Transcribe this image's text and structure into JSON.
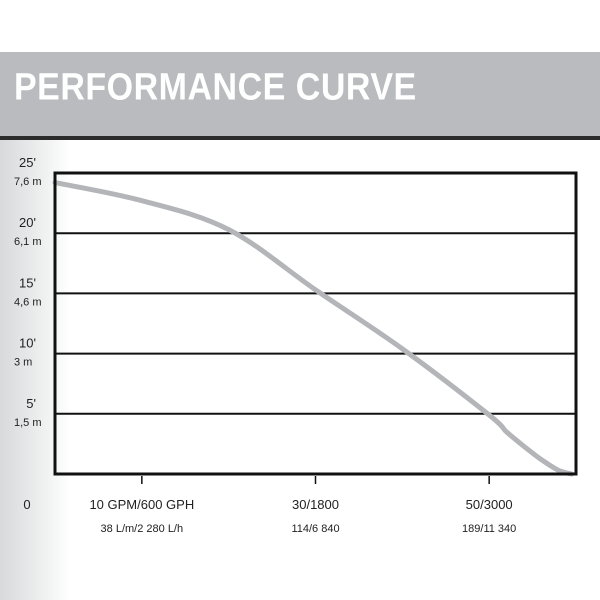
{
  "header": {
    "title": "PERFORMANCE CURVE"
  },
  "chart_data": {
    "type": "line",
    "title": "PERFORMANCE CURVE",
    "xlabel": "",
    "ylabel": "",
    "x_unit_max": 60,
    "xlim": [
      0,
      60
    ],
    "ylim": [
      0,
      25
    ],
    "grid": true,
    "y_ticks": [
      {
        "value": 5,
        "ft": "5'",
        "m": "1,5 m"
      },
      {
        "value": 10,
        "ft": "10'",
        "m": "3 m"
      },
      {
        "value": 15,
        "ft": "15'",
        "m": "4,6 m"
      },
      {
        "value": 20,
        "ft": "20'",
        "m": "6,1 m"
      },
      {
        "value": 25,
        "ft": "25'",
        "m": "7,6 m"
      }
    ],
    "x_ticks": [
      {
        "value": 10,
        "line1": "10 GPM/600 GPH",
        "line2": "38 L/m/2 280 L/h"
      },
      {
        "value": 30,
        "line1": "30/1800",
        "line2": "114/6 840"
      },
      {
        "value": 50,
        "line1": "50/3000",
        "line2": "189/11 340"
      }
    ],
    "origin_label": "0",
    "series": [
      {
        "color": "#b3b5b8",
        "x": [
          0,
          10,
          20,
          30,
          40,
          50,
          52,
          54,
          56,
          58,
          59.5
        ],
        "y": [
          24.2,
          22.7,
          20.3,
          15.3,
          10.4,
          4.9,
          3.5,
          2.3,
          1.2,
          0.3,
          0
        ]
      }
    ]
  }
}
